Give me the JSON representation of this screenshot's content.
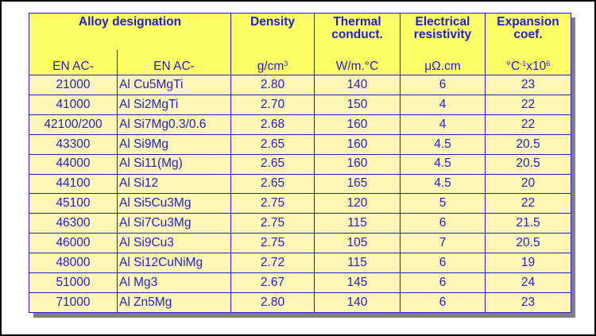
{
  "header": {
    "alloy_designation": "Alloy  designation",
    "density": "Density",
    "thermal": "Thermal conduct.",
    "electrical": "Electrical resistivity",
    "expansion": "Expansion coef."
  },
  "units": {
    "en_ac_1": "EN AC-",
    "en_ac_2": "EN AC-",
    "density_base": "g/cm",
    "density_sup": "3",
    "thermal": "W/m.°C",
    "electrical": "μΩ.cm",
    "expansion_base": "°C",
    "expansion_sup1": "-1",
    "expansion_mid": "x10",
    "expansion_sup2": "6"
  },
  "rows": [
    {
      "code": "21000",
      "name": "Al Cu5MgTi",
      "density": "2.80",
      "thermal": "140",
      "electrical": "6",
      "expansion": "23"
    },
    {
      "code": "41000",
      "name": "Al Si2MgTi",
      "density": "2.70",
      "thermal": "150",
      "electrical": "4",
      "expansion": "22"
    },
    {
      "code": "42100/200",
      "name": "Al Si7Mg0.3/0.6",
      "density": "2.68",
      "thermal": "160",
      "electrical": "4",
      "expansion": "22"
    },
    {
      "code": "43300",
      "name": "Al Si9Mg",
      "density": "2.65",
      "thermal": "160",
      "electrical": "4.5",
      "expansion": "20.5"
    },
    {
      "code": "44000",
      "name": "Al Si11(Mg)",
      "density": "2.65",
      "thermal": "160",
      "electrical": "4.5",
      "expansion": "20.5"
    },
    {
      "code": "44100",
      "name": "Al Si12",
      "density": "2.65",
      "thermal": "165",
      "electrical": "4.5",
      "expansion": "20"
    },
    {
      "code": "45100",
      "name": "Al Si5Cu3Mg",
      "density": "2.75",
      "thermal": "120",
      "electrical": "5",
      "expansion": "22"
    },
    {
      "code": "46300",
      "name": "Al Si7Cu3Mg",
      "density": "2.75",
      "thermal": "115",
      "electrical": "6",
      "expansion": "21.5"
    },
    {
      "code": "46000",
      "name": "Al Si9Cu3",
      "density": "2.75",
      "thermal": "105",
      "electrical": "7",
      "expansion": "20.5"
    },
    {
      "code": "48000",
      "name": "Al Si12CuNiMg",
      "density": "2.72",
      "thermal": "115",
      "electrical": "6",
      "expansion": "19"
    },
    {
      "code": "51000",
      "name": "Al Mg3",
      "density": "2.67",
      "thermal": "145",
      "electrical": "6",
      "expansion": "24"
    },
    {
      "code": "71000",
      "name": "Al Zn5Mg",
      "density": "2.80",
      "thermal": "140",
      "electrical": "6",
      "expansion": "23"
    }
  ]
}
